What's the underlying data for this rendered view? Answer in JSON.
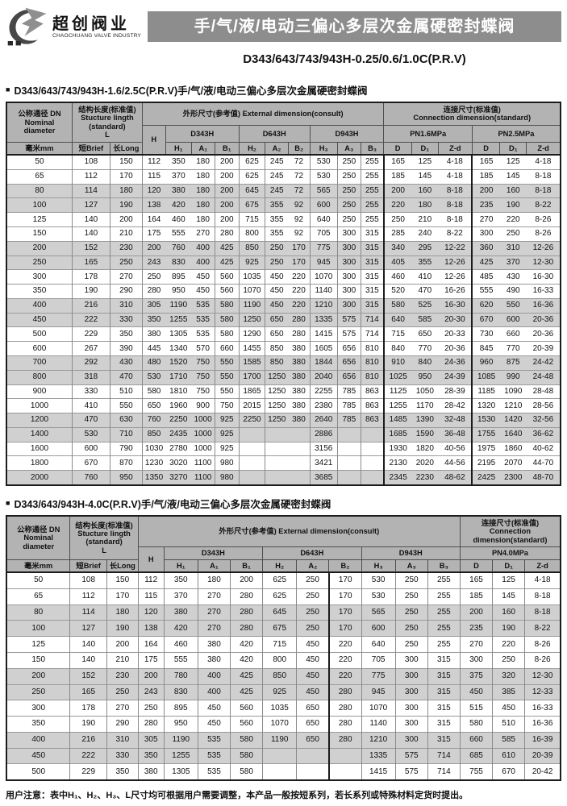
{
  "ui": {
    "bullet": "■"
  },
  "colors": {
    "banner_bg": "#8d8d8d",
    "table_header_bg": "#b3b3b3",
    "row_shade_bg": "#d0d0d0"
  },
  "header": {
    "brand_cn": "超创阀业",
    "brand_en": "CHAOCHUANG VALVE INDUSTRY",
    "banner": "手/气/液/电动三偏心多层次金属硬密封蝶阀",
    "subtitle": "D343/643/743/943H-0.25/0.6/1.0C(P.R.V)"
  },
  "section1": {
    "title": "D343/643/743/943H-1.6/2.5C(P.R.V)手/气/液/电动三偏心多层次金属硬密封蝶阀"
  },
  "section2": {
    "title": "D343/643/943H-4.0C(P.R.V)手/气/液/电动三偏心多层次金属硬密封蝶阀"
  },
  "table1": {
    "header": {
      "dn": "公称通径 DN\nNominal\ndiameter",
      "struct": "结构长度(标准值)\nStucture lingth\n(standard)\nL",
      "ext": "外形尺寸(参考值) External  dimension(consult)",
      "conn": "连接尺寸(标准值)\nConnection dimension(standard)",
      "h": "H",
      "unit": "毫米mm",
      "brief": "短Brief",
      "long": "长Long",
      "groups": [
        "D343H",
        "D643H",
        "D943H",
        "PN1.6MPa",
        "PN2.5MPa"
      ],
      "sub": [
        "H₁",
        "A₁",
        "B₁",
        "H₂",
        "A₂",
        "B₂",
        "H₃",
        "A₃",
        "B₃",
        "D",
        "D₁",
        "Z-d",
        "D",
        "D₁",
        "Z-d"
      ]
    },
    "rows": [
      [
        "50",
        "108",
        "150",
        "112",
        "350",
        "180",
        "200",
        "625",
        "245",
        "72",
        "530",
        "250",
        "255",
        "165",
        "125",
        "4-18",
        "165",
        "125",
        "4-18"
      ],
      [
        "65",
        "112",
        "170",
        "115",
        "370",
        "180",
        "200",
        "625",
        "245",
        "72",
        "530",
        "250",
        "255",
        "185",
        "145",
        "4-18",
        "185",
        "145",
        "8-18"
      ],
      [
        "80",
        "114",
        "180",
        "120",
        "380",
        "180",
        "200",
        "645",
        "245",
        "72",
        "565",
        "250",
        "255",
        "200",
        "160",
        "8-18",
        "200",
        "160",
        "8-18"
      ],
      [
        "100",
        "127",
        "190",
        "138",
        "420",
        "180",
        "200",
        "675",
        "355",
        "92",
        "600",
        "250",
        "255",
        "220",
        "180",
        "8-18",
        "235",
        "190",
        "8-22"
      ],
      [
        "125",
        "140",
        "200",
        "164",
        "460",
        "180",
        "200",
        "715",
        "355",
        "92",
        "640",
        "250",
        "255",
        "250",
        "210",
        "8-18",
        "270",
        "220",
        "8-26"
      ],
      [
        "150",
        "140",
        "210",
        "175",
        "555",
        "270",
        "280",
        "800",
        "355",
        "92",
        "705",
        "300",
        "315",
        "285",
        "240",
        "8-22",
        "300",
        "250",
        "8-26"
      ],
      [
        "200",
        "152",
        "230",
        "200",
        "760",
        "400",
        "425",
        "850",
        "250",
        "170",
        "775",
        "300",
        "315",
        "340",
        "295",
        "12-22",
        "360",
        "310",
        "12-26"
      ],
      [
        "250",
        "165",
        "250",
        "243",
        "830",
        "400",
        "425",
        "925",
        "250",
        "170",
        "945",
        "300",
        "315",
        "405",
        "355",
        "12-26",
        "425",
        "370",
        "12-30"
      ],
      [
        "300",
        "178",
        "270",
        "250",
        "895",
        "450",
        "560",
        "1035",
        "450",
        "220",
        "1070",
        "300",
        "315",
        "460",
        "410",
        "12-26",
        "485",
        "430",
        "16-30"
      ],
      [
        "350",
        "190",
        "290",
        "280",
        "950",
        "450",
        "560",
        "1070",
        "450",
        "220",
        "1140",
        "300",
        "315",
        "520",
        "470",
        "16-26",
        "555",
        "490",
        "16-33"
      ],
      [
        "400",
        "216",
        "310",
        "305",
        "1190",
        "535",
        "580",
        "1190",
        "450",
        "220",
        "1210",
        "300",
        "315",
        "580",
        "525",
        "16-30",
        "620",
        "550",
        "16-36"
      ],
      [
        "450",
        "222",
        "330",
        "350",
        "1255",
        "535",
        "580",
        "1250",
        "650",
        "280",
        "1335",
        "575",
        "714",
        "640",
        "585",
        "20-30",
        "670",
        "600",
        "20-36"
      ],
      [
        "500",
        "229",
        "350",
        "380",
        "1305",
        "535",
        "580",
        "1290",
        "650",
        "280",
        "1415",
        "575",
        "714",
        "715",
        "650",
        "20-33",
        "730",
        "660",
        "20-36"
      ],
      [
        "600",
        "267",
        "390",
        "445",
        "1340",
        "570",
        "660",
        "1455",
        "850",
        "380",
        "1605",
        "656",
        "810",
        "840",
        "770",
        "20-36",
        "845",
        "770",
        "20-39"
      ],
      [
        "700",
        "292",
        "430",
        "480",
        "1520",
        "750",
        "550",
        "1585",
        "850",
        "380",
        "1844",
        "656",
        "810",
        "910",
        "840",
        "24-36",
        "960",
        "875",
        "24-42"
      ],
      [
        "800",
        "318",
        "470",
        "530",
        "1710",
        "750",
        "550",
        "1700",
        "1250",
        "380",
        "2040",
        "656",
        "810",
        "1025",
        "950",
        "24-39",
        "1085",
        "990",
        "24-48"
      ],
      [
        "900",
        "330",
        "510",
        "580",
        "1810",
        "750",
        "550",
        "1865",
        "1250",
        "380",
        "2255",
        "785",
        "863",
        "1125",
        "1050",
        "28-39",
        "1185",
        "1090",
        "28-48"
      ],
      [
        "1000",
        "410",
        "550",
        "650",
        "1960",
        "900",
        "750",
        "2015",
        "1250",
        "380",
        "2380",
        "785",
        "863",
        "1255",
        "1170",
        "28-42",
        "1320",
        "1210",
        "28-56"
      ],
      [
        "1200",
        "470",
        "630",
        "760",
        "2250",
        "1000",
        "925",
        "2250",
        "1250",
        "380",
        "2640",
        "785",
        "863",
        "1485",
        "1390",
        "32-48",
        "1530",
        "1420",
        "32-56"
      ],
      [
        "1400",
        "530",
        "710",
        "850",
        "2435",
        "1000",
        "925",
        "",
        "",
        "",
        "2886",
        "",
        "",
        "1685",
        "1590",
        "36-48",
        "1755",
        "1640",
        "36-62"
      ],
      [
        "1600",
        "600",
        "790",
        "1030",
        "2780",
        "1000",
        "925",
        "",
        "",
        "",
        "3156",
        "",
        "",
        "1930",
        "1820",
        "40-56",
        "1975",
        "1860",
        "40-62"
      ],
      [
        "1800",
        "670",
        "870",
        "1230",
        "3020",
        "1100",
        "980",
        "",
        "",
        "",
        "3421",
        "",
        "",
        "2130",
        "2020",
        "44-56",
        "2195",
        "2070",
        "44-70"
      ],
      [
        "2000",
        "760",
        "950",
        "1350",
        "3270",
        "1100",
        "980",
        "",
        "",
        "",
        "3685",
        "",
        "",
        "2345",
        "2230",
        "48-62",
        "2425",
        "2300",
        "48-70"
      ]
    ]
  },
  "table2": {
    "header": {
      "dn": "公称通径 DN\nNominal\ndiameter",
      "struct": "结构长度(标准值)\nStucture lingth\n(standard)\nL",
      "ext": "外形尺寸(参考值) External  dimension(consult)",
      "conn": "连接尺寸(标准值)\nConnection\ndimension(standard)",
      "h": "H",
      "unit": "毫米mm",
      "brief": "短Brief",
      "long": "长Long",
      "groups": [
        "D343H",
        "D643H",
        "D943H",
        "PN4.0MPa"
      ],
      "sub": [
        "H₁",
        "A₁",
        "B₁",
        "H₂",
        "A₂",
        "B₂",
        "H₃",
        "A₃",
        "B₃",
        "D",
        "D₁",
        "Z-d"
      ]
    },
    "rows": [
      [
        "50",
        "108",
        "150",
        "112",
        "350",
        "180",
        "200",
        "625",
        "250",
        "170",
        "530",
        "250",
        "255",
        "165",
        "125",
        "4-18"
      ],
      [
        "65",
        "112",
        "170",
        "115",
        "370",
        "270",
        "280",
        "625",
        "250",
        "170",
        "530",
        "250",
        "255",
        "185",
        "145",
        "8-18"
      ],
      [
        "80",
        "114",
        "180",
        "120",
        "380",
        "270",
        "280",
        "645",
        "250",
        "170",
        "565",
        "250",
        "255",
        "200",
        "160",
        "8-18"
      ],
      [
        "100",
        "127",
        "190",
        "138",
        "420",
        "270",
        "280",
        "675",
        "250",
        "170",
        "600",
        "250",
        "255",
        "235",
        "190",
        "8-22"
      ],
      [
        "125",
        "140",
        "200",
        "164",
        "460",
        "380",
        "420",
        "715",
        "450",
        "220",
        "640",
        "250",
        "255",
        "270",
        "220",
        "8-26"
      ],
      [
        "150",
        "140",
        "210",
        "175",
        "555",
        "380",
        "420",
        "800",
        "450",
        "220",
        "705",
        "300",
        "315",
        "300",
        "250",
        "8-26"
      ],
      [
        "200",
        "152",
        "230",
        "200",
        "780",
        "400",
        "425",
        "850",
        "450",
        "220",
        "775",
        "300",
        "315",
        "375",
        "320",
        "12-30"
      ],
      [
        "250",
        "165",
        "250",
        "243",
        "830",
        "400",
        "425",
        "925",
        "450",
        "280",
        "945",
        "300",
        "315",
        "450",
        "385",
        "12-33"
      ],
      [
        "300",
        "178",
        "270",
        "250",
        "895",
        "450",
        "560",
        "1035",
        "650",
        "280",
        "1070",
        "300",
        "315",
        "515",
        "450",
        "16-33"
      ],
      [
        "350",
        "190",
        "290",
        "280",
        "950",
        "450",
        "560",
        "1070",
        "650",
        "280",
        "1140",
        "300",
        "315",
        "580",
        "510",
        "16-36"
      ],
      [
        "400",
        "216",
        "310",
        "305",
        "1190",
        "535",
        "580",
        "1190",
        "650",
        "280",
        "1210",
        "300",
        "315",
        "660",
        "585",
        "16-39"
      ],
      [
        "450",
        "222",
        "330",
        "350",
        "1255",
        "535",
        "580",
        "",
        "",
        "",
        "1335",
        "575",
        "714",
        "685",
        "610",
        "20-39"
      ],
      [
        "500",
        "229",
        "350",
        "380",
        "1305",
        "535",
        "580",
        "",
        "",
        "",
        "1415",
        "575",
        "714",
        "755",
        "670",
        "20-42"
      ]
    ]
  },
  "footer": {
    "note": "用户注意：表中H₁、H₂、H₃、L尺寸均可根据用户需要调整，本产品一般按短系列，若长系列或特殊材料定货时提出。"
  }
}
